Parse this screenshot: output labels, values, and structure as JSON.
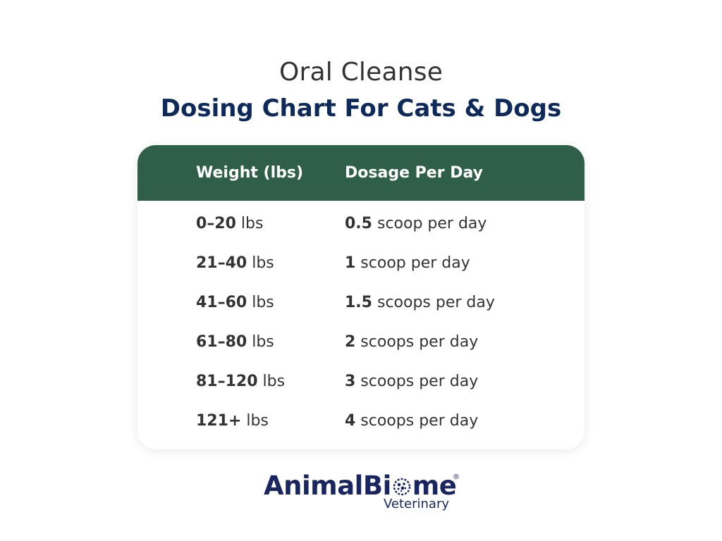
{
  "heading": {
    "subtitle": "Oral Cleanse",
    "title": "Dosing Chart For Cats & Dogs"
  },
  "table": {
    "columns": [
      "Weight (lbs)",
      "Dosage Per Day"
    ],
    "rows": [
      {
        "weight_value": "0–20",
        "weight_unit": " lbs",
        "dose_value": "0.5",
        "dose_unit": " scoop per day"
      },
      {
        "weight_value": "21–40",
        "weight_unit": " lbs",
        "dose_value": "1",
        "dose_unit": " scoop per day"
      },
      {
        "weight_value": "41–60",
        "weight_unit": " lbs",
        "dose_value": "1.5",
        "dose_unit": " scoops per day"
      },
      {
        "weight_value": "61–80",
        "weight_unit": " lbs",
        "dose_value": "2",
        "dose_unit": " scoops per day"
      },
      {
        "weight_value": "81–120",
        "weight_unit": " lbs",
        "dose_value": "3",
        "dose_unit": " scoops per day"
      },
      {
        "weight_value": "121+",
        "weight_unit": " lbs",
        "dose_value": "4",
        "dose_unit": " scoops per day"
      }
    ]
  },
  "logo": {
    "brand_prefix": "AnimalBi",
    "brand_suffix": "me",
    "registered": "®",
    "subtitle": "Veterinary"
  },
  "colors": {
    "header_bg": "#2f5e49",
    "title_color": "#0e2a5a",
    "logo_color": "#1a2660",
    "text_color": "#333333"
  }
}
